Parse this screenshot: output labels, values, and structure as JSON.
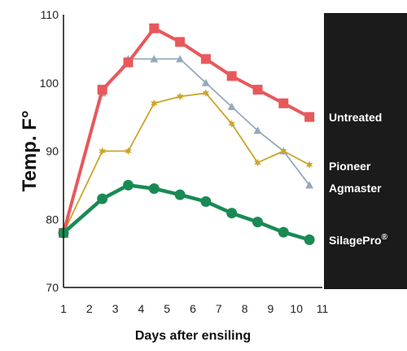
{
  "chart_data": {
    "type": "line",
    "xlabel": "Days after ensiling",
    "ylabel": "Temp. F°",
    "xlim": [
      1,
      11
    ],
    "ylim": [
      70,
      110
    ],
    "x_ticks": [
      1,
      2,
      3,
      4,
      5,
      6,
      7,
      8,
      9,
      10,
      11
    ],
    "y_ticks": [
      70,
      80,
      90,
      100,
      110
    ],
    "grid": false,
    "legend_placement": "right",
    "series": [
      {
        "name": "Untreated",
        "color": "#e8585b",
        "marker": "square",
        "x": [
          1,
          2.5,
          3.5,
          4.5,
          5.5,
          6.5,
          7.5,
          8.5,
          9.5,
          10.5
        ],
        "y": [
          78,
          99,
          103,
          108,
          106,
          103.5,
          101,
          99,
          97,
          95
        ]
      },
      {
        "name": "Agmaster",
        "color": "#94aabb",
        "marker": "triangle",
        "x": [
          1,
          2.5,
          3.5,
          4.5,
          5.5,
          6.5,
          7.5,
          8.5,
          9.5,
          10.5
        ],
        "y": [
          78,
          98.5,
          103.5,
          103.5,
          103.5,
          100,
          96.5,
          93,
          90,
          85
        ]
      },
      {
        "name": "Pioneer",
        "color": "#c9a52a",
        "marker": "star",
        "x": [
          1,
          2.5,
          3.5,
          4.5,
          5.5,
          6.5,
          7.5,
          8.5,
          9.5,
          10.5
        ],
        "y": [
          78,
          90,
          90,
          97,
          98,
          98.5,
          94,
          88.3,
          90,
          88
        ]
      },
      {
        "name": "SilagePro",
        "name_suffix": "®",
        "color": "#1a8a55",
        "marker": "circle",
        "x": [
          1,
          2.5,
          3.5,
          4.5,
          5.5,
          6.5,
          7.5,
          8.5,
          9.5,
          10.5
        ],
        "y": [
          78,
          83,
          85,
          84.5,
          83.6,
          82.6,
          80.9,
          79.6,
          78.1,
          77
        ]
      }
    ]
  }
}
